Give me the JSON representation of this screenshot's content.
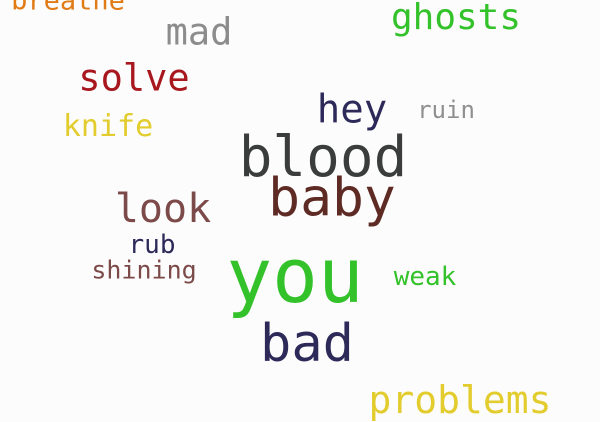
{
  "words": {
    "breathe": {
      "text": "breathe",
      "color": "#e07b16"
    },
    "ghosts": {
      "text": "ghosts",
      "color": "#33c22a"
    },
    "mad": {
      "text": "mad",
      "color": "#8c8c8c"
    },
    "solve": {
      "text": "solve",
      "color": "#a8161e"
    },
    "hey": {
      "text": "hey",
      "color": "#2d2a59"
    },
    "ruin": {
      "text": "ruin",
      "color": "#8f8f8f"
    },
    "knife": {
      "text": "knife",
      "color": "#e2cc2e"
    },
    "blood": {
      "text": "blood",
      "color": "#3a3d3b"
    },
    "baby": {
      "text": "baby",
      "color": "#5e2a24"
    },
    "look": {
      "text": "look",
      "color": "#7b4a49"
    },
    "rub": {
      "text": "rub",
      "color": "#2d2a59"
    },
    "shining": {
      "text": "shining",
      "color": "#7b4a49"
    },
    "you": {
      "text": "you",
      "color": "#33c22a"
    },
    "weak": {
      "text": "weak",
      "color": "#33c22a"
    },
    "bad": {
      "text": "bad",
      "color": "#2d2a59"
    },
    "problems": {
      "text": "problems",
      "color": "#e2cc2e"
    }
  }
}
